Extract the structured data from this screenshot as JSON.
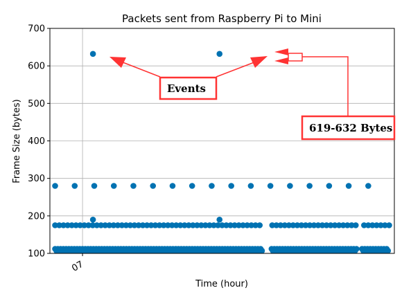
{
  "chart_data": {
    "type": "scatter",
    "title": "Packets sent from Raspberry Pi to Mini",
    "xlabel": "Time (hour)",
    "ylabel": "Frame Size (bytes)",
    "ylim": [
      100,
      700
    ],
    "yticks": [
      100,
      200,
      300,
      400,
      500,
      600,
      700
    ],
    "xtick_labels": [
      "07"
    ],
    "grid": true,
    "colors": {
      "marker": "#0072b2",
      "annotation": "#ff3333",
      "axes": "#000000",
      "grid": "#b0b0b0"
    },
    "series": [
      {
        "x": [
          0.0,
          0.75,
          1.5,
          2.25,
          3.0,
          3.75,
          4.5,
          5.25,
          6.0,
          6.75,
          7.5,
          8.25,
          9.0,
          9.75,
          10.5,
          11.25,
          12.0
        ],
        "y": [
          280,
          280,
          280,
          280,
          280,
          280,
          280,
          280,
          280,
          280,
          280,
          280,
          280,
          280,
          280,
          280,
          280
        ]
      },
      {
        "x": [
          1.45,
          6.3
        ],
        "y": [
          632,
          632
        ]
      },
      {
        "x": [
          1.45,
          6.3
        ],
        "y": [
          190,
          190
        ]
      }
    ],
    "dense_rows": [
      {
        "y": 175,
        "x_start": 0.0,
        "x_end": 12.8,
        "step": 0.16,
        "gaps": [
          [
            7.95,
            8.3
          ],
          [
            11.6,
            11.8
          ]
        ]
      },
      {
        "y": 112,
        "x_start": 0.0,
        "x_end": 12.8,
        "step": 0.105,
        "gaps": [
          [
            7.95,
            8.25
          ],
          [
            11.6,
            11.75
          ]
        ]
      },
      {
        "y": 107,
        "x_start": 0.05,
        "x_end": 12.8,
        "step": 0.105,
        "gaps": [
          [
            7.95,
            8.25
          ],
          [
            11.6,
            11.75
          ]
        ]
      }
    ],
    "annotations": [
      {
        "text": "Events"
      },
      {
        "text": "619-632 Bytes"
      }
    ]
  }
}
